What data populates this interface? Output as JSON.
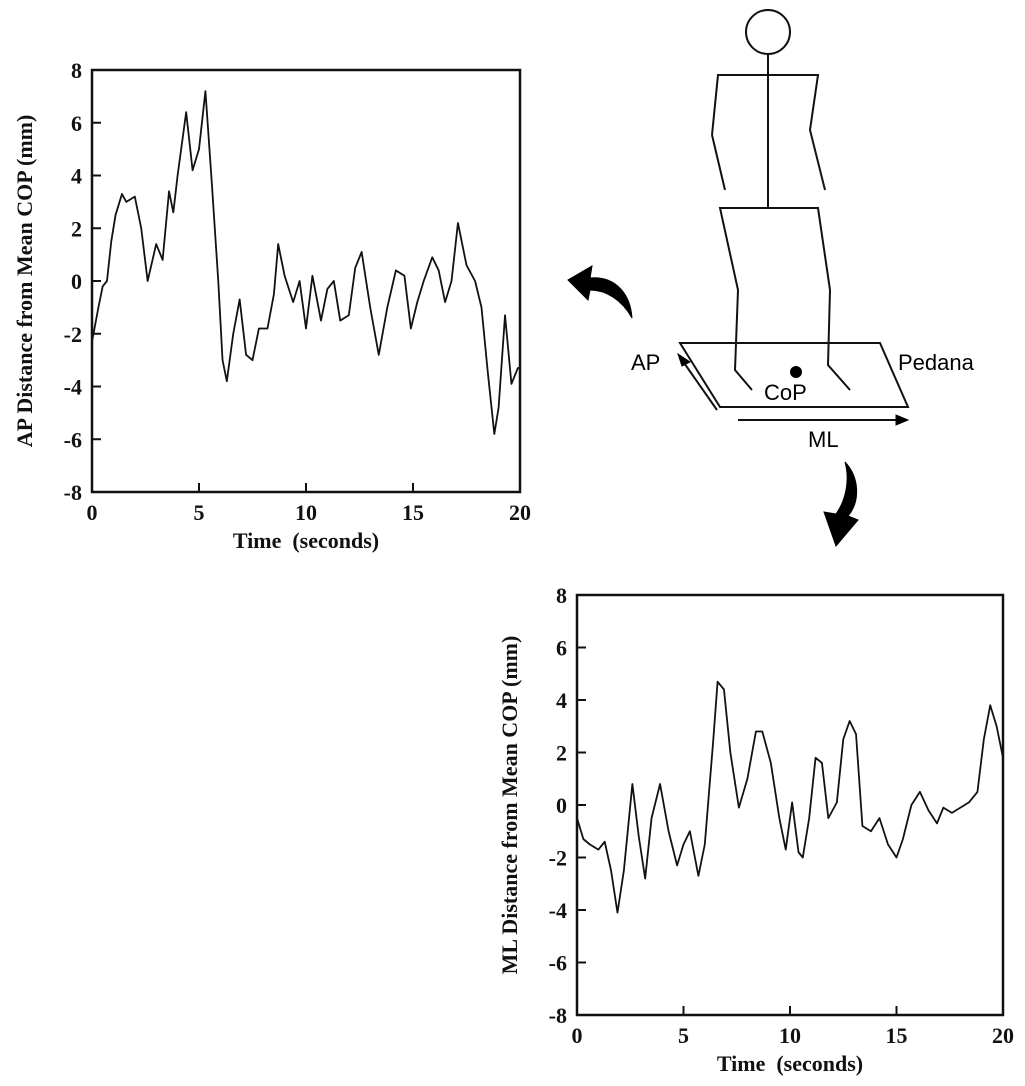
{
  "chart_data": [
    {
      "type": "line",
      "xlabel": "Time  (seconds)",
      "ylabel": "AP Distance from Mean COP (mm)",
      "xlim": [
        0,
        20
      ],
      "xticks": [
        0,
        5,
        10,
        15,
        20
      ],
      "ylim": [
        -8,
        8
      ],
      "yticks": [
        -8,
        -6,
        -4,
        -2,
        0,
        2,
        4,
        6,
        8
      ],
      "color": "#111111",
      "x": [
        0,
        0.3,
        0.5,
        0.7,
        0.9,
        1.1,
        1.4,
        1.6,
        2.0,
        2.3,
        2.6,
        3.0,
        3.3,
        3.6,
        3.8,
        4.0,
        4.4,
        4.7,
        5.0,
        5.3,
        5.6,
        5.9,
        6.1,
        6.3,
        6.6,
        6.9,
        7.2,
        7.5,
        7.8,
        8.2,
        8.5,
        8.7,
        9.0,
        9.4,
        9.7,
        10.0,
        10.3,
        10.7,
        11.0,
        11.3,
        11.6,
        12.0,
        12.3,
        12.6,
        13.0,
        13.4,
        13.8,
        14.2,
        14.6,
        14.9,
        15.2,
        15.5,
        15.9,
        16.2,
        16.5,
        16.8,
        17.1,
        17.5,
        17.9,
        18.2,
        18.5,
        18.8,
        19.0,
        19.3,
        19.6,
        19.9,
        20
      ],
      "values": [
        -2.3,
        -1.0,
        -0.2,
        0,
        1.5,
        2.5,
        3.3,
        3.0,
        3.2,
        2.0,
        0.0,
        1.4,
        0.8,
        3.4,
        2.6,
        4.0,
        6.4,
        4.2,
        5.0,
        7.2,
        3.7,
        0.0,
        -3.0,
        -3.8,
        -2.0,
        -0.7,
        -2.8,
        -3.0,
        -1.8,
        -1.8,
        -0.5,
        1.4,
        0.2,
        -0.8,
        0.0,
        -1.8,
        0.2,
        -1.5,
        -0.3,
        0.0,
        -1.5,
        -1.3,
        0.5,
        1.1,
        -1.0,
        -2.8,
        -1.0,
        0.4,
        0.2,
        -1.8,
        -0.8,
        0.0,
        0.9,
        0.4,
        -0.8,
        0.0,
        2.2,
        0.6,
        0.0,
        -1.0,
        -3.5,
        -5.8,
        -4.8,
        -1.3,
        -3.9,
        -3.3,
        -3.3
      ]
    },
    {
      "type": "line",
      "xlabel": "Time  (seconds)",
      "ylabel": "ML Distance from Mean COP (mm)",
      "xlim": [
        0,
        20
      ],
      "xticks": [
        0,
        5,
        10,
        15,
        20
      ],
      "ylim": [
        -8,
        8
      ],
      "yticks": [
        -8,
        -6,
        -4,
        -2,
        0,
        2,
        4,
        6,
        8
      ],
      "color": "#111111",
      "x": [
        0,
        0.3,
        0.6,
        1.0,
        1.3,
        1.6,
        1.9,
        2.2,
        2.6,
        2.9,
        3.2,
        3.5,
        3.9,
        4.3,
        4.7,
        5.0,
        5.3,
        5.7,
        6.0,
        6.4,
        6.6,
        6.9,
        7.2,
        7.6,
        8.0,
        8.4,
        8.7,
        9.1,
        9.5,
        9.8,
        10.1,
        10.4,
        10.6,
        10.9,
        11.2,
        11.5,
        11.8,
        12.2,
        12.5,
        12.8,
        13.1,
        13.4,
        13.8,
        14.2,
        14.6,
        15.0,
        15.3,
        15.7,
        16.1,
        16.5,
        16.9,
        17.2,
        17.6,
        18.0,
        18.4,
        18.8,
        19.1,
        19.4,
        19.7,
        20
      ],
      "values": [
        -0.5,
        -1.3,
        -1.5,
        -1.7,
        -1.4,
        -2.5,
        -4.1,
        -2.5,
        0.8,
        -1.2,
        -2.8,
        -0.5,
        0.8,
        -1.0,
        -2.3,
        -1.5,
        -1.0,
        -2.7,
        -1.5,
        2.5,
        4.7,
        4.4,
        2.0,
        -0.1,
        1.0,
        2.8,
        2.8,
        1.6,
        -0.5,
        -1.7,
        0.1,
        -1.8,
        -2.0,
        -0.5,
        1.8,
        1.6,
        -0.5,
        0.1,
        2.5,
        3.2,
        2.7,
        -0.8,
        -1.0,
        -0.5,
        -1.5,
        -2.0,
        -1.3,
        0.0,
        0.5,
        -0.2,
        -0.7,
        -0.1,
        -0.3,
        -0.1,
        0.1,
        0.5,
        2.5,
        3.8,
        3.0,
        1.8
      ]
    }
  ],
  "diagram": {
    "ap": "AP",
    "cop": "CoP",
    "platform": "Pedana",
    "ml": "ML"
  }
}
